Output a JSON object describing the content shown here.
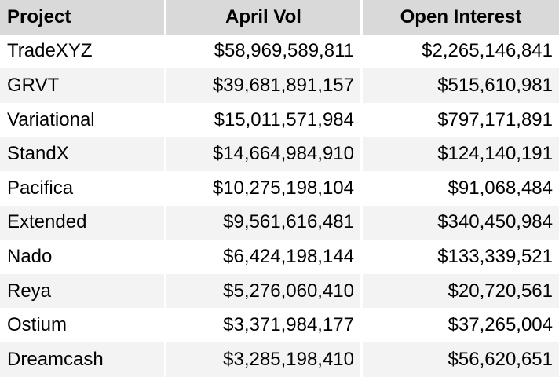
{
  "table": {
    "headers": {
      "project": "Project",
      "april_vol": "April Vol",
      "open_interest": "Open Interest"
    },
    "rows": [
      {
        "project": "TradeXYZ",
        "april_vol": "$58,969,589,811",
        "open_interest": "$2,265,146,841"
      },
      {
        "project": "GRVT",
        "april_vol": "$39,681,891,157",
        "open_interest": "$515,610,981"
      },
      {
        "project": "Variational",
        "april_vol": "$15,011,571,984",
        "open_interest": "$797,171,891"
      },
      {
        "project": "StandX",
        "april_vol": "$14,664,984,910",
        "open_interest": "$124,140,191"
      },
      {
        "project": "Pacifica",
        "april_vol": "$10,275,198,104",
        "open_interest": "$91,068,484"
      },
      {
        "project": "Extended",
        "april_vol": "$9,561,616,481",
        "open_interest": "$340,450,984"
      },
      {
        "project": "Nado",
        "april_vol": "$6,424,198,144",
        "open_interest": "$133,339,521"
      },
      {
        "project": "Reya",
        "april_vol": "$5,276,060,410",
        "open_interest": "$20,720,561"
      },
      {
        "project": "Ostium",
        "april_vol": "$3,371,984,177",
        "open_interest": "$37,265,004"
      },
      {
        "project": "Dreamcash",
        "april_vol": "$3,285,198,410",
        "open_interest": "$56,620,651"
      }
    ]
  },
  "colors": {
    "header_bg": "#d9d9d9",
    "stripe_bg": "#f3f3f3",
    "row_bg": "#ffffff",
    "text": "#000000"
  }
}
